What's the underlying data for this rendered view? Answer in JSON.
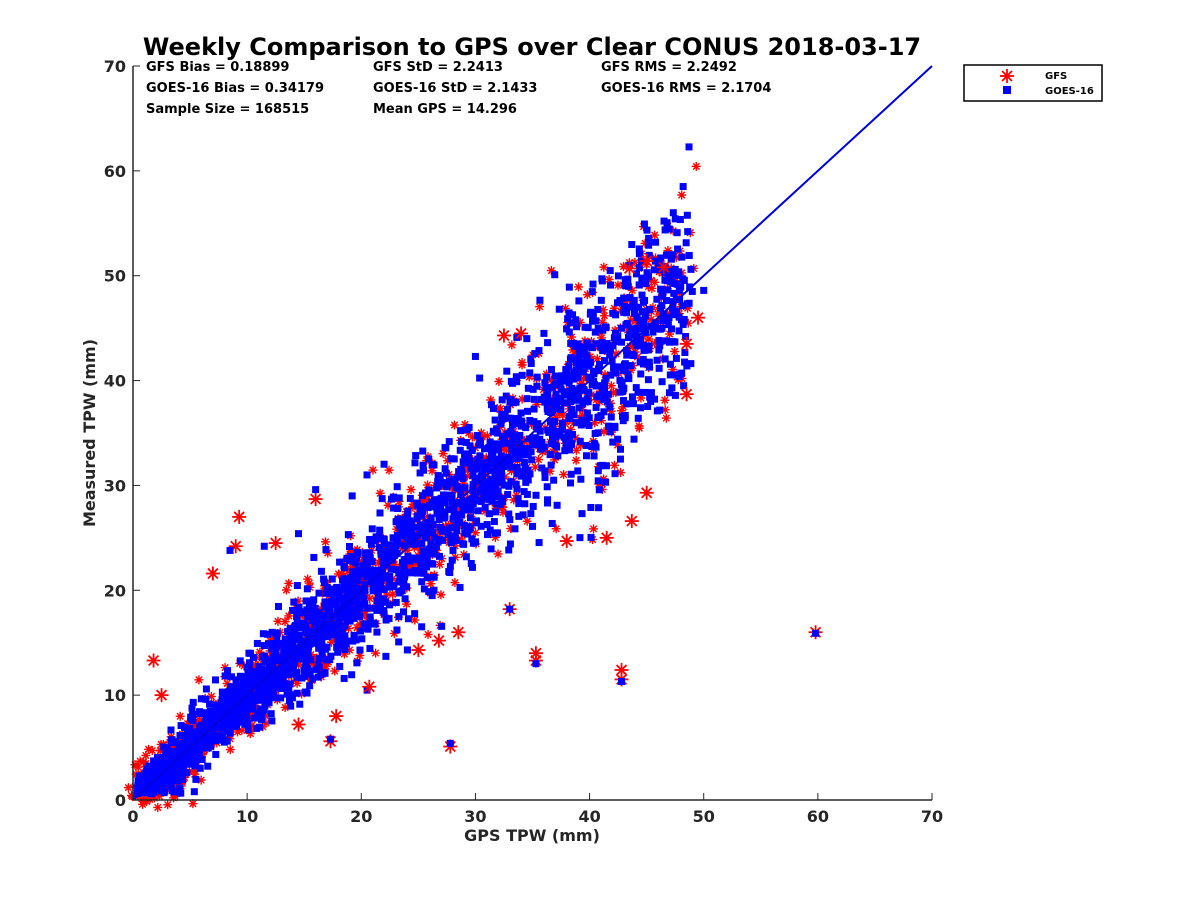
{
  "chart_data": {
    "type": "scatter",
    "title": "Weekly Comparison to GPS over Clear CONUS 2018-03-17",
    "xlabel": "GPS TPW (mm)",
    "ylabel": "Measured TPW (mm)",
    "xlim": [
      0,
      70
    ],
    "ylim": [
      0,
      70
    ],
    "xticks": [
      "0",
      "10",
      "20",
      "30",
      "40",
      "50",
      "60",
      "70"
    ],
    "yticks": [
      "0",
      "10",
      "20",
      "30",
      "40",
      "50",
      "60",
      "70"
    ],
    "grid": false,
    "legend_position": "outside-top-right",
    "stats": [
      [
        "GFS Bias = 0.18899",
        "GFS StD = 2.2413",
        "GFS RMS = 2.2492"
      ],
      [
        "GOES-16 Bias = 0.34179",
        "GOES-16 StD = 2.1433",
        "GOES-16 RMS = 2.1704"
      ],
      [
        "Sample Size = 168515",
        "Mean GPS = 14.296"
      ]
    ],
    "reference_line": {
      "name": "1:1",
      "x": [
        0,
        70
      ],
      "y": [
        0,
        70
      ],
      "color": "#0000dd"
    },
    "series": [
      {
        "name": "GFS",
        "marker": "asterisk",
        "color": "#ff0000",
        "cloud_note": "dense cloud of ~168515 points along the 1:1 line from 0 to ~50 mm",
        "outliers": [
          [
            9.3,
            27.0
          ],
          [
            32.5,
            44.3
          ],
          [
            34.0,
            44.5
          ],
          [
            43.5,
            50.7
          ],
          [
            45.0,
            51.4
          ],
          [
            46.5,
            50.8
          ],
          [
            49.5,
            46.0
          ],
          [
            48.5,
            43.5
          ],
          [
            48.5,
            38.7
          ],
          [
            43.7,
            26.6
          ],
          [
            41.5,
            25.0
          ],
          [
            45.0,
            29.3
          ],
          [
            38.0,
            24.7
          ],
          [
            33.0,
            18.2
          ],
          [
            35.3,
            14.0
          ],
          [
            35.3,
            13.3
          ],
          [
            42.8,
            12.4
          ],
          [
            42.8,
            11.5
          ],
          [
            27.8,
            5.1
          ],
          [
            17.3,
            5.6
          ],
          [
            17.8,
            8.0
          ],
          [
            59.8,
            16.0
          ],
          [
            28.5,
            16.0
          ],
          [
            26.8,
            15.2
          ],
          [
            25.0,
            14.3
          ],
          [
            20.7,
            10.8
          ],
          [
            14.5,
            7.2
          ],
          [
            7.0,
            21.6
          ],
          [
            9.0,
            24.2
          ],
          [
            12.5,
            24.5
          ],
          [
            16.0,
            28.7
          ],
          [
            1.8,
            13.3
          ],
          [
            2.5,
            10.0
          ]
        ]
      },
      {
        "name": "GOES-16",
        "marker": "square",
        "color": "#0000ff",
        "cloud_note": "dense cloud of ~168515 points along the 1:1 line from 0 to ~50 mm",
        "outliers": [
          [
            40.3,
            49.2
          ],
          [
            43.0,
            46.5
          ],
          [
            44.0,
            47.0
          ],
          [
            30.0,
            42.3
          ],
          [
            34.5,
            44.0
          ],
          [
            36.0,
            44.5
          ],
          [
            39.0,
            43.5
          ],
          [
            49.0,
            48.5
          ],
          [
            50.0,
            48.6
          ],
          [
            33.0,
            18.2
          ],
          [
            35.3,
            13.0
          ],
          [
            42.8,
            11.3
          ],
          [
            27.8,
            5.4
          ],
          [
            17.3,
            5.8
          ],
          [
            59.8,
            15.9
          ],
          [
            16.0,
            29.6
          ],
          [
            14.5,
            25.4
          ],
          [
            11.5,
            24.2
          ],
          [
            8.5,
            23.8
          ],
          [
            19.2,
            29.0
          ],
          [
            20.5,
            31.0
          ]
        ]
      }
    ]
  }
}
